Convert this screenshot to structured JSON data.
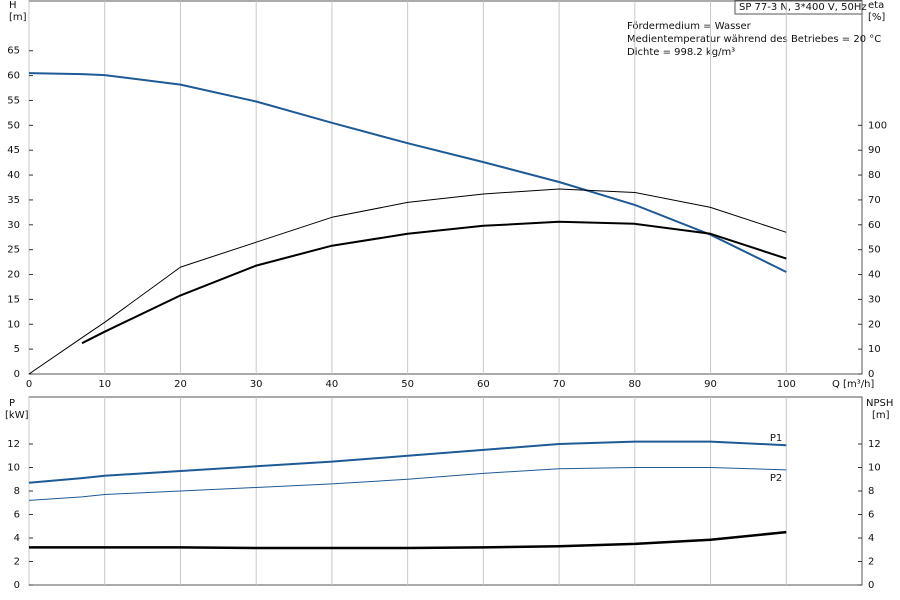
{
  "chart_data": [
    {
      "type": "line",
      "title": "SP 77-3 N, 3*400 V, 50Hz",
      "annotations": [
        "Fördermedium = Wasser",
        "Medientemperatur während des Betriebes = 20 °C",
        "Dichte = 998.2 kg/m³"
      ],
      "ylabel": "H",
      "yunit": "[m]",
      "y2label": "eta",
      "y2unit": "[%]",
      "xlabel": "Q [m³/h]",
      "x": [
        0,
        7,
        10,
        20,
        30,
        40,
        50,
        60,
        70,
        80,
        90,
        100
      ],
      "xlim": [
        0,
        110
      ],
      "xticks": [
        0,
        10,
        20,
        30,
        40,
        50,
        60,
        70,
        80,
        90,
        100
      ],
      "xtick_labels": true,
      "ylim": [
        0,
        75
      ],
      "yticks": [
        0,
        5,
        10,
        15,
        20,
        25,
        30,
        35,
        40,
        45,
        50,
        55,
        60,
        65
      ],
      "y2lim": [
        0,
        150
      ],
      "y2ticks": [
        0,
        10,
        20,
        30,
        40,
        50,
        60,
        70,
        80,
        90,
        100
      ],
      "grid": "x",
      "series": [
        {
          "color": "#1f5a96",
          "line_width": 2,
          "values": [
            60.5,
            60.3,
            60.1,
            58.2,
            54.8,
            50.5,
            46.4,
            42.6,
            38.6,
            34,
            28,
            20.5
          ]
        },
        {
          "color": "#000000",
          "line_width": 1,
          "axis": "y2",
          "values": [
            0,
            14.6,
            20.8,
            43,
            53,
            63,
            69,
            72.4,
            74.4,
            73,
            67,
            57
          ]
        },
        {
          "color": "#000000",
          "line_width": 2,
          "axis": "y2",
          "values": [
            null,
            12.4,
            17,
            31.6,
            43.6,
            51.6,
            56.4,
            59.6,
            61.2,
            60.4,
            56.4,
            46.4
          ]
        }
      ]
    },
    {
      "type": "line",
      "ylabel": "P",
      "yunit": "[kW]",
      "y2label": "NPSH",
      "y2unit": "[m]",
      "x": [
        0,
        7,
        10,
        20,
        30,
        40,
        50,
        60,
        70,
        80,
        90,
        100
      ],
      "xlim": [
        0,
        110
      ],
      "xticks": [
        0,
        10,
        20,
        30,
        40,
        50,
        60,
        70,
        80,
        90,
        100
      ],
      "xtick_labels": false,
      "ylim": [
        0,
        16
      ],
      "yticks": [
        0,
        2,
        4,
        6,
        8,
        10,
        12
      ],
      "y2lim": [
        0,
        16
      ],
      "y2ticks": [
        0,
        2,
        4,
        6,
        8,
        10,
        12
      ],
      "grid": "x",
      "series": [
        {
          "name": "P1",
          "color": "#1f5a96",
          "line_width": 2,
          "values": [
            8.7,
            9.1,
            9.3,
            9.7,
            10.1,
            10.5,
            11,
            11.5,
            12,
            12.2,
            12.2,
            11.9
          ]
        },
        {
          "name": "P2",
          "color": "#1f5a96",
          "line_width": 1,
          "values": [
            7.2,
            7.5,
            7.7,
            8.0,
            8.3,
            8.6,
            9,
            9.5,
            9.9,
            10,
            10,
            9.8
          ]
        },
        {
          "color": "#000000",
          "line_width": 2.5,
          "axis": "y2",
          "values": [
            3.2,
            3.2,
            3.2,
            3.2,
            3.15,
            3.15,
            3.15,
            3.2,
            3.3,
            3.5,
            3.85,
            4.5
          ]
        }
      ]
    }
  ]
}
